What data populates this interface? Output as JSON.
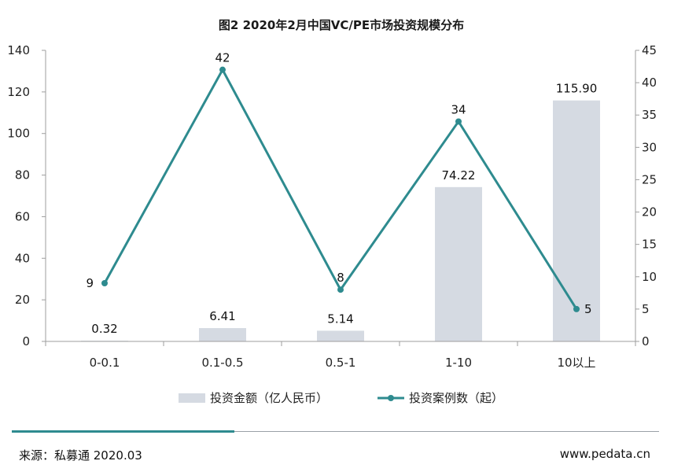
{
  "chart_data": {
    "type": "bar",
    "title": "图2   2020年2月中国VC/PE市场投资规模分布",
    "categories": [
      "0-0.1",
      "0.1-0.5",
      "0.5-1",
      "1-10",
      "10以上"
    ],
    "series": [
      {
        "name": "投资金额（亿人民币）",
        "type": "bar",
        "axis": "left",
        "values": [
          0.32,
          6.41,
          5.14,
          74.22,
          115.9
        ],
        "labels": [
          "0.32",
          "6.41",
          "5.14",
          "74.22",
          "115.90"
        ],
        "color": "#d5dae2"
      },
      {
        "name": "投资案例数（起）",
        "type": "line",
        "axis": "right",
        "values": [
          9,
          42,
          8,
          34,
          5
        ],
        "labels": [
          "9",
          "42",
          "8",
          "34",
          "5"
        ],
        "color": "#2e8b8f"
      }
    ],
    "y_left": {
      "ylim": [
        0,
        140
      ],
      "ticks": [
        0,
        20,
        40,
        60,
        80,
        100,
        120,
        140
      ]
    },
    "y_right": {
      "ylim": [
        0,
        45
      ],
      "ticks": [
        0,
        5,
        10,
        15,
        20,
        25,
        30,
        35,
        40,
        45
      ]
    },
    "legend_position": "bottom",
    "grid": false
  },
  "footer": {
    "source": "来源：私募通 2020.03",
    "site": "www.pedata.cn",
    "accent_color": "#2e8b8f"
  }
}
